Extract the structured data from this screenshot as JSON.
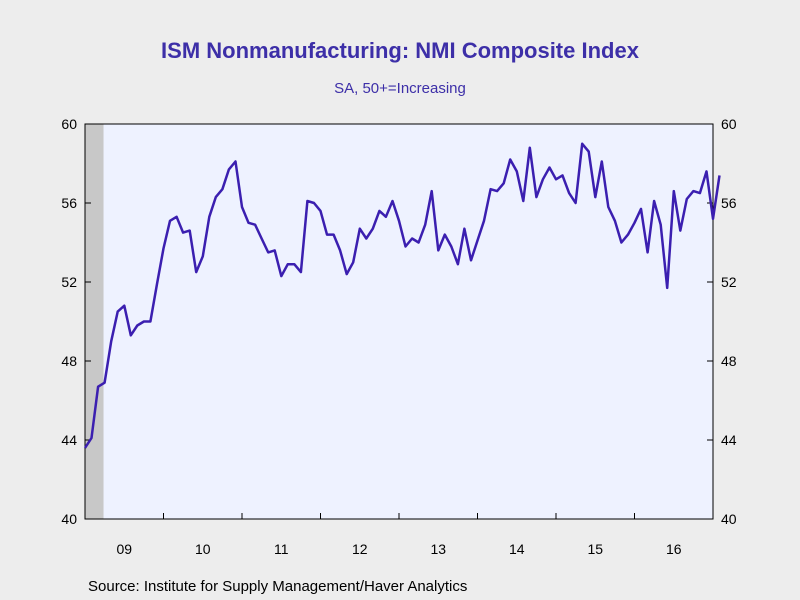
{
  "title": "ISM Nonmanufacturing: NMI Composite Index",
  "subtitle": "SA, 50+=Increasing",
  "source": "Source:  Institute for Supply Management/Haver Analytics",
  "colors": {
    "line": "#3b1fb0",
    "plot_background": "#eef2ff",
    "recession_shade": "#c8c8c8",
    "page_background": "#ededed"
  },
  "chart_data": {
    "type": "line",
    "title": "ISM Nonmanufacturing: NMI Composite Index",
    "subtitle": "SA, 50+=Increasing",
    "xlabel": "",
    "ylabel": "",
    "ylim": [
      40,
      60
    ],
    "yticks": [
      40,
      44,
      48,
      52,
      56,
      60
    ],
    "ytick_labels": [
      "40",
      "44",
      "48",
      "52",
      "56",
      "60"
    ],
    "y_axis_sides": "left-and-right",
    "xticks": [
      "09",
      "10",
      "11",
      "12",
      "13",
      "14",
      "15",
      "16"
    ],
    "x_start": "2009-01",
    "x_end": "2017-01",
    "grid": false,
    "recession_shading": {
      "from": "2009-01",
      "to": "2009-06"
    },
    "series": [
      {
        "frequency": "monthly",
        "start": "2009-01",
        "values": [
          43.6,
          44.1,
          46.7,
          46.9,
          49.0,
          50.5,
          50.8,
          49.3,
          49.8,
          50.0,
          50.0,
          51.9,
          53.7,
          55.1,
          55.3,
          54.5,
          54.6,
          52.5,
          53.3,
          55.3,
          56.3,
          56.7,
          57.7,
          58.1,
          55.8,
          55.0,
          54.9,
          54.2,
          53.5,
          53.6,
          52.3,
          52.9,
          52.9,
          52.5,
          56.1,
          56.0,
          55.6,
          54.4,
          54.4,
          53.6,
          52.4,
          53.0,
          54.7,
          54.2,
          54.7,
          55.6,
          55.3,
          56.1,
          55.1,
          53.8,
          54.2,
          54.0,
          54.9,
          56.6,
          53.6,
          54.4,
          53.8,
          52.9,
          54.7,
          53.1,
          54.1,
          55.1,
          56.7,
          56.6,
          57.0,
          58.2,
          57.6,
          56.1,
          58.8,
          56.3,
          57.2,
          57.8,
          57.2,
          57.4,
          56.5,
          56.0,
          59.0,
          58.6,
          56.3,
          58.1,
          55.8,
          55.1,
          54.0,
          54.4,
          55.0,
          55.7,
          53.5,
          56.1,
          54.9,
          51.7,
          56.6,
          54.6,
          56.2,
          56.6,
          56.5,
          57.6,
          55.2,
          57.4
        ]
      }
    ]
  }
}
